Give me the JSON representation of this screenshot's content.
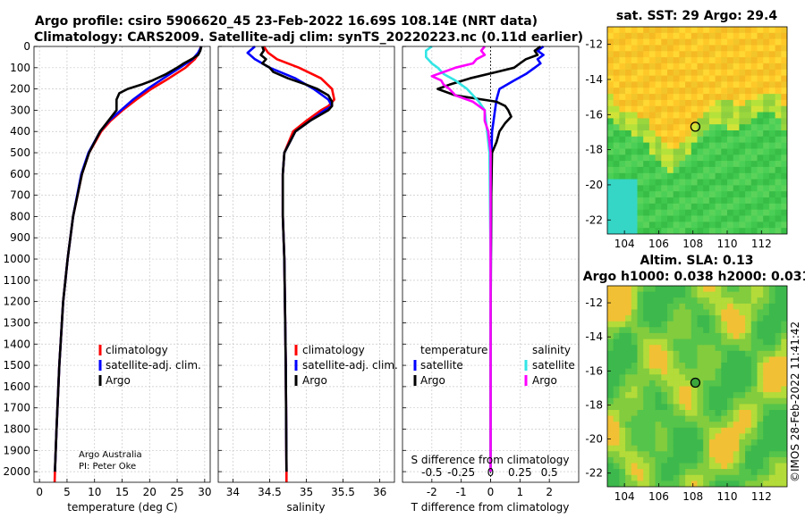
{
  "title_line1": "Argo profile: csiro 5906620_45 23-Feb-2022 16.69S 108.14E (NRT data)",
  "title_line2": "Climatology: CARS2009. Satellite-adj clim: synTS_20220223.nc (0.11d earlier)",
  "colors": {
    "climatology": "#ff0000",
    "satellite_adj": "#0000ff",
    "argo": "#000000",
    "sat_temp": "#0000ff",
    "sat_sal": "#33e5e5",
    "argo_sal": "#ff00ff"
  },
  "credit": {
    "line1": "Argo Australia",
    "line2": "PI: Peter Oke"
  },
  "timestamp": "©IMOS 28-Feb-2022 11:41:42",
  "chart_data": [
    {
      "type": "line",
      "id": "temperature",
      "title": "",
      "xlabel": "temperature (deg C)",
      "ylabel": "",
      "xlim": [
        -1,
        31
      ],
      "ylim": [
        2050,
        0
      ],
      "xticks": [
        0,
        5,
        10,
        15,
        20,
        25,
        30
      ],
      "yticks": [
        0,
        100,
        200,
        300,
        400,
        500,
        600,
        700,
        800,
        900,
        1000,
        1100,
        1200,
        1300,
        1400,
        1500,
        1600,
        1700,
        1800,
        1900,
        2000
      ],
      "legend": [
        "climatology",
        "satellite-adj. clim.",
        "Argo"
      ],
      "series": [
        {
          "name": "climatology",
          "depth": [
            0,
            30,
            60,
            100,
            150,
            200,
            250,
            300,
            350,
            400,
            500,
            600,
            800,
            1000,
            1200,
            1500,
            1800,
            2000,
            2050
          ],
          "values": [
            29.3,
            29,
            28.2,
            26.5,
            23.5,
            20.3,
            17.6,
            15.1,
            12.9,
            11.2,
            9,
            7.7,
            6.1,
            5.1,
            4.3,
            3.6,
            3.1,
            2.8,
            2.75
          ]
        },
        {
          "name": "satellite-adj. clim.",
          "depth": [
            0,
            30,
            60,
            100,
            150,
            200,
            250,
            300,
            350,
            400,
            500,
            600,
            800,
            1000,
            1200,
            1500,
            1800,
            2000
          ],
          "values": [
            29.4,
            28.8,
            27.8,
            25.5,
            22.5,
            19.6,
            17,
            14.8,
            12.6,
            11,
            8.9,
            7.6,
            6.1,
            5.1,
            4.3,
            3.6,
            3.1,
            2.8
          ]
        },
        {
          "name": "Argo",
          "depth": [
            0,
            20,
            40,
            60,
            80,
            100,
            130,
            160,
            180,
            200,
            220,
            250,
            280,
            300,
            350,
            400,
            500,
            600,
            800,
            1000,
            1200,
            1500,
            1800,
            2000
          ],
          "values": [
            29.4,
            29.2,
            28.8,
            27.6,
            26.2,
            25,
            23,
            20.5,
            18.5,
            16,
            14.5,
            14,
            14,
            14,
            12.5,
            11,
            9,
            7.7,
            6.1,
            5.1,
            4.3,
            3.6,
            3.1,
            2.8
          ]
        }
      ]
    },
    {
      "type": "line",
      "id": "salinity",
      "title": "",
      "xlabel": "salinity",
      "ylabel": "",
      "xlim": [
        33.8,
        36.2
      ],
      "ylim": [
        2050,
        0
      ],
      "xticks": [
        34,
        34.5,
        35,
        35.5,
        36
      ],
      "legend": [
        "climatology",
        "satellite-adj. clim.",
        "Argo"
      ],
      "series": [
        {
          "name": "climatology",
          "depth": [
            0,
            30,
            60,
            100,
            150,
            200,
            250,
            280,
            300,
            350,
            400,
            500,
            600,
            800,
            1000,
            1500,
            2000,
            2050
          ],
          "values": [
            34.42,
            34.48,
            34.6,
            34.9,
            35.2,
            35.35,
            35.38,
            35.3,
            35.2,
            35.0,
            34.82,
            34.7,
            34.68,
            34.68,
            34.7,
            34.72,
            34.73,
            34.73
          ]
        },
        {
          "name": "satellite-adj. clim.",
          "depth": [
            0,
            30,
            60,
            100,
            150,
            200,
            250,
            280,
            300,
            350,
            400,
            500,
            600,
            800,
            1000,
            1500,
            2000
          ],
          "values": [
            34.3,
            34.2,
            34.3,
            34.5,
            34.85,
            35.1,
            35.3,
            35.35,
            35.25,
            35.05,
            34.85,
            34.7,
            34.68,
            34.68,
            34.7,
            34.72,
            34.73
          ]
        },
        {
          "name": "Argo",
          "depth": [
            0,
            20,
            40,
            60,
            80,
            100,
            120,
            150,
            180,
            200,
            230,
            260,
            280,
            300,
            350,
            400,
            500,
            600,
            800,
            1000,
            1500,
            2000
          ],
          "values": [
            34.4,
            34.42,
            34.38,
            34.45,
            34.4,
            34.5,
            34.55,
            34.75,
            35.0,
            35.15,
            35.3,
            35.35,
            35.35,
            35.3,
            35.05,
            34.85,
            34.7,
            34.68,
            34.68,
            34.7,
            34.72,
            34.73
          ]
        }
      ]
    },
    {
      "type": "line",
      "id": "difference",
      "title": "",
      "xlabel": "T difference from climatology",
      "x2label": "S difference from climatology",
      "xlim": [
        -3,
        3
      ],
      "x2lim": [
        -0.75,
        0.75
      ],
      "ylim": [
        2050,
        0
      ],
      "xticks": [
        -2,
        -1,
        0,
        1,
        2
      ],
      "x2ticks": [
        -0.5,
        -0.25,
        0,
        0.25,
        0.5
      ],
      "x2tick_labels": [
        "-0.5",
        "-0.25",
        "0",
        "0.25",
        "0.5"
      ],
      "legend_temperature_title": "temperature",
      "legend_salinity_title": "salinity",
      "legend_temperature": [
        "satellite",
        "Argo"
      ],
      "legend_salinity": [
        "satellite",
        "Argo"
      ],
      "series": [
        {
          "name": "temperature satellite",
          "axis": "T",
          "depth": [
            0,
            20,
            40,
            60,
            80,
            100,
            130,
            160,
            200,
            250,
            300,
            350,
            400,
            500,
            700,
            1000,
            1500,
            2000
          ],
          "values": [
            1.8,
            1.6,
            1.8,
            1.6,
            1.7,
            1.5,
            1.2,
            0.8,
            0.3,
            0.2,
            0.15,
            0.1,
            0.05,
            0.03,
            0.02,
            0.01,
            0,
            0
          ]
        },
        {
          "name": "temperature Argo",
          "axis": "T",
          "depth": [
            0,
            20,
            40,
            60,
            80,
            100,
            120,
            150,
            180,
            200,
            230,
            260,
            280,
            300,
            330,
            360,
            400,
            450,
            500,
            700,
            1000,
            1500,
            2000
          ],
          "values": [
            1.7,
            1.5,
            1.6,
            1.2,
            1.0,
            0.8,
            0.2,
            -0.7,
            -1.4,
            -1.8,
            -1.2,
            0.2,
            0.5,
            0.6,
            0.7,
            0.5,
            0.3,
            0.2,
            0.05,
            0.02,
            0.01,
            0,
            0
          ]
        },
        {
          "name": "salinity satellite",
          "axis": "S",
          "depth": [
            0,
            20,
            50,
            80,
            100,
            130,
            160,
            200,
            230,
            260,
            300,
            400,
            500,
            1000,
            2000
          ],
          "values": [
            -0.5,
            -0.55,
            -0.55,
            -0.5,
            -0.45,
            -0.4,
            -0.3,
            -0.2,
            -0.15,
            -0.1,
            -0.05,
            -0.03,
            -0.01,
            0,
            0
          ]
        },
        {
          "name": "salinity Argo",
          "axis": "S",
          "depth": [
            0,
            20,
            40,
            60,
            80,
            100,
            120,
            140,
            160,
            180,
            200,
            230,
            260,
            300,
            350,
            400,
            450,
            500,
            700,
            1000,
            2000
          ],
          "values": [
            -0.05,
            -0.08,
            -0.05,
            -0.12,
            -0.15,
            -0.3,
            -0.4,
            -0.5,
            -0.42,
            -0.4,
            -0.35,
            -0.3,
            -0.15,
            -0.05,
            -0.05,
            -0.02,
            -0.01,
            0,
            0,
            0,
            0
          ]
        }
      ]
    },
    {
      "type": "heatmap",
      "id": "sst_map",
      "title": "sat. SST: 29 Argo: 29.4",
      "xlim": [
        103,
        113.5
      ],
      "ylim": [
        -22.8,
        -11
      ],
      "xticks": [
        104,
        106,
        108,
        110,
        112
      ],
      "yticks": [
        -12,
        -14,
        -16,
        -18,
        -20,
        -22
      ],
      "marker": {
        "lon": 108.14,
        "lat": -16.69
      }
    },
    {
      "type": "heatmap",
      "id": "sla_map",
      "title": "Altim. SLA: 0.13",
      "subtitle": "Argo h1000: 0.038 h2000: 0.031",
      "xlim": [
        103,
        113.5
      ],
      "ylim": [
        -22.8,
        -11
      ],
      "xticks": [
        104,
        106,
        108,
        110,
        112
      ],
      "yticks": [
        -12,
        -14,
        -16,
        -18,
        -20,
        -22
      ],
      "marker": {
        "lon": 108.14,
        "lat": -16.69
      }
    }
  ]
}
